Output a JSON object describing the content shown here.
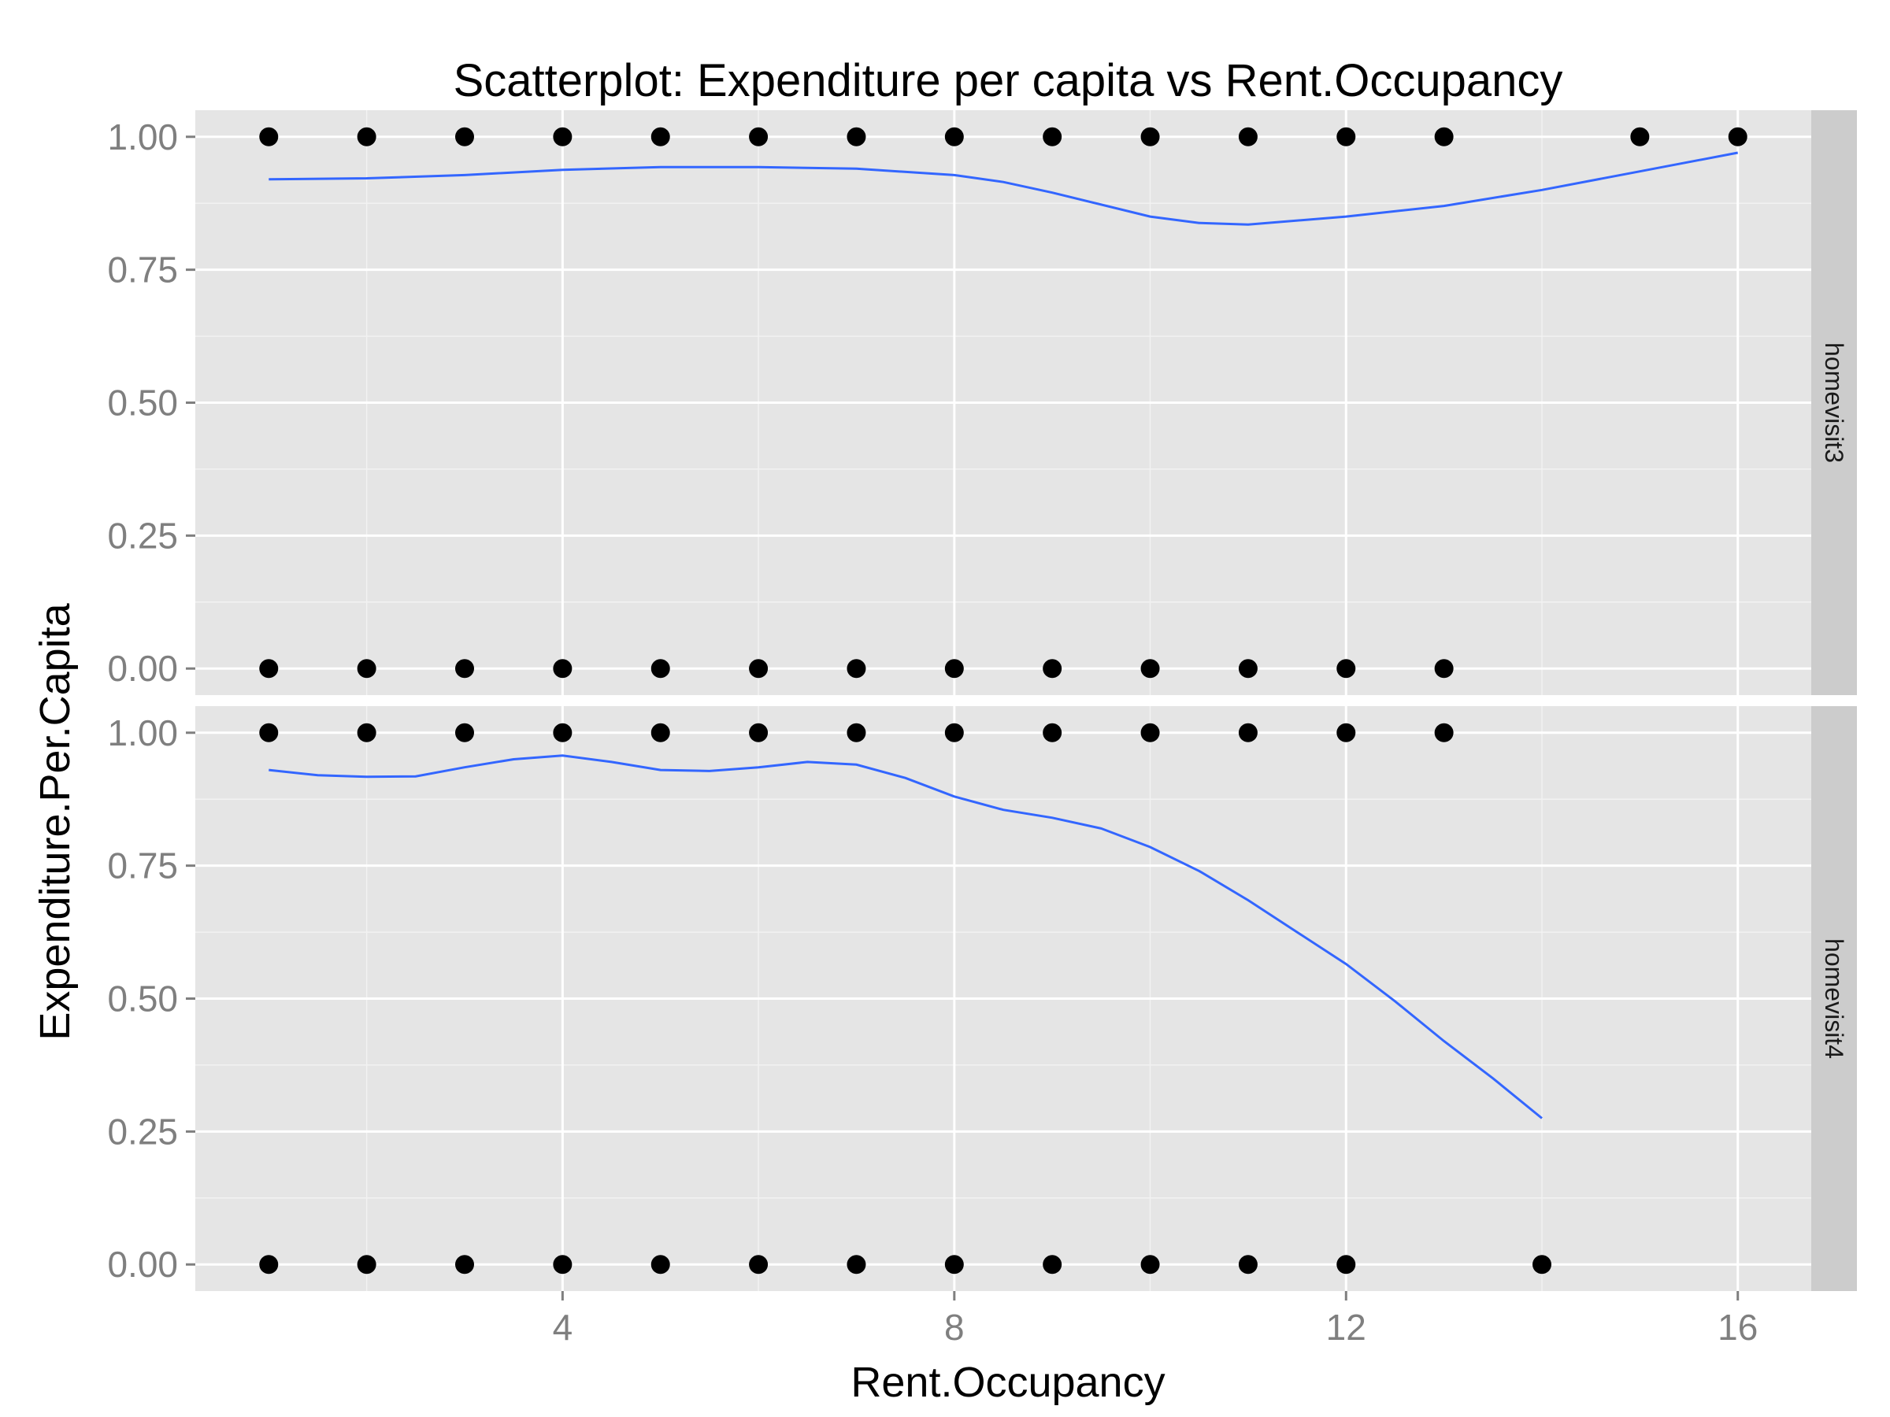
{
  "chart_data": {
    "type": "scatter",
    "title": "Scatterplot: Expenditure per capita vs Rent.Occupancy",
    "xlabel": "Rent.Occupancy",
    "ylabel": "Expenditure.Per.Capita",
    "xlim": [
      0.25,
      16.75
    ],
    "ylim": [
      -0.05,
      1.05
    ],
    "x_ticks": [
      4,
      8,
      12,
      16
    ],
    "x_tick_labels": [
      "4",
      "8",
      "12",
      "16"
    ],
    "y_ticks": [
      0,
      0.25,
      0.5,
      0.75,
      1
    ],
    "y_tick_labels": [
      "0.00",
      "0.25",
      "0.50",
      "0.75",
      "1.00"
    ],
    "grid": true,
    "legend": "none",
    "colors": {
      "panel_bg": "#e5e5e5",
      "strip_bg": "#cccccc",
      "grid_major": "#ffffff",
      "grid_minor": "#f2f2f2",
      "point": "#000000",
      "smooth": "#3366ff"
    },
    "panels": [
      {
        "strip_label": "homevisit3",
        "points": [
          [
            1,
            1
          ],
          [
            2,
            1
          ],
          [
            3,
            1
          ],
          [
            4,
            1
          ],
          [
            5,
            1
          ],
          [
            6,
            1
          ],
          [
            7,
            1
          ],
          [
            8,
            1
          ],
          [
            9,
            1
          ],
          [
            10,
            1
          ],
          [
            11,
            1
          ],
          [
            12,
            1
          ],
          [
            13,
            1
          ],
          [
            15,
            1
          ],
          [
            16,
            1
          ],
          [
            1,
            0
          ],
          [
            2,
            0
          ],
          [
            3,
            0
          ],
          [
            4,
            0
          ],
          [
            5,
            0
          ],
          [
            6,
            0
          ],
          [
            7,
            0
          ],
          [
            8,
            0
          ],
          [
            9,
            0
          ],
          [
            10,
            0
          ],
          [
            11,
            0
          ],
          [
            12,
            0
          ],
          [
            13,
            0
          ]
        ],
        "smooth": [
          [
            1,
            0.92
          ],
          [
            2,
            0.922
          ],
          [
            3,
            0.928
          ],
          [
            4,
            0.938
          ],
          [
            5,
            0.943
          ],
          [
            6,
            0.943
          ],
          [
            7,
            0.94
          ],
          [
            8,
            0.928
          ],
          [
            8.5,
            0.915
          ],
          [
            9,
            0.895
          ],
          [
            10,
            0.85
          ],
          [
            10.5,
            0.838
          ],
          [
            11,
            0.835
          ],
          [
            12,
            0.85
          ],
          [
            13,
            0.87
          ],
          [
            14,
            0.9
          ],
          [
            15,
            0.935
          ],
          [
            16,
            0.97
          ]
        ]
      },
      {
        "strip_label": "homevisit4",
        "points": [
          [
            1,
            1
          ],
          [
            2,
            1
          ],
          [
            3,
            1
          ],
          [
            4,
            1
          ],
          [
            5,
            1
          ],
          [
            6,
            1
          ],
          [
            7,
            1
          ],
          [
            8,
            1
          ],
          [
            9,
            1
          ],
          [
            10,
            1
          ],
          [
            11,
            1
          ],
          [
            12,
            1
          ],
          [
            13,
            1
          ],
          [
            1,
            0
          ],
          [
            2,
            0
          ],
          [
            3,
            0
          ],
          [
            4,
            0
          ],
          [
            5,
            0
          ],
          [
            6,
            0
          ],
          [
            7,
            0
          ],
          [
            8,
            0
          ],
          [
            9,
            0
          ],
          [
            10,
            0
          ],
          [
            11,
            0
          ],
          [
            12,
            0
          ],
          [
            14,
            0
          ]
        ],
        "smooth": [
          [
            1,
            0.93
          ],
          [
            1.5,
            0.92
          ],
          [
            2,
            0.917
          ],
          [
            2.5,
            0.918
          ],
          [
            3,
            0.935
          ],
          [
            3.5,
            0.95
          ],
          [
            4,
            0.957
          ],
          [
            4.5,
            0.945
          ],
          [
            5,
            0.93
          ],
          [
            5.5,
            0.928
          ],
          [
            6,
            0.935
          ],
          [
            6.5,
            0.945
          ],
          [
            7,
            0.94
          ],
          [
            7.5,
            0.915
          ],
          [
            8,
            0.88
          ],
          [
            8.5,
            0.855
          ],
          [
            9,
            0.84
          ],
          [
            9.5,
            0.82
          ],
          [
            10,
            0.785
          ],
          [
            10.5,
            0.74
          ],
          [
            11,
            0.685
          ],
          [
            11.5,
            0.625
          ],
          [
            12,
            0.565
          ],
          [
            12.5,
            0.495
          ],
          [
            13,
            0.42
          ],
          [
            13.5,
            0.35
          ],
          [
            14,
            0.275
          ]
        ]
      }
    ]
  }
}
